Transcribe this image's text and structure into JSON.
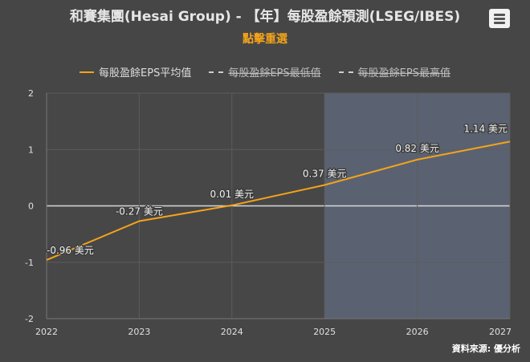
{
  "header": {
    "title": "和賽集團(Hesai Group) - 【年】每股盈餘預測(LSEG/IBES)",
    "subtitle": "點擊重選"
  },
  "legend": [
    {
      "label": "每股盈餘EPS平均值",
      "color": "#f4a31a",
      "style": "solid",
      "visible": true
    },
    {
      "label": "每股盈餘EPS最低值",
      "color": "#cfcfcf",
      "style": "dash",
      "visible": false
    },
    {
      "label": "每股盈餘EPS最高值",
      "color": "#cfcfcf",
      "style": "dash",
      "visible": false
    }
  ],
  "source": "資料來源: 優分析",
  "chart_data": {
    "type": "line",
    "x": [
      2022,
      2023,
      2024,
      2025,
      2026,
      2027
    ],
    "xlim": [
      2022,
      2027
    ],
    "ylim": [
      -2,
      2
    ],
    "yticks": [
      -2,
      -1,
      0,
      1,
      2
    ],
    "xticks": [
      2022,
      2023,
      2024,
      2025,
      2026,
      2027
    ],
    "forecast_band": [
      2025,
      2027
    ],
    "grid": true,
    "legend_position": "top",
    "series": [
      {
        "name": "每股盈餘EPS平均值",
        "color": "#f4a31a",
        "values": [
          -0.96,
          -0.27,
          0.01,
          0.37,
          0.82,
          1.14
        ],
        "labels": [
          "-0.96 美元",
          "-0.27 美元",
          "0.01 美元",
          "0.37 美元",
          "0.82 美元",
          "1.14 美元"
        ]
      }
    ]
  }
}
